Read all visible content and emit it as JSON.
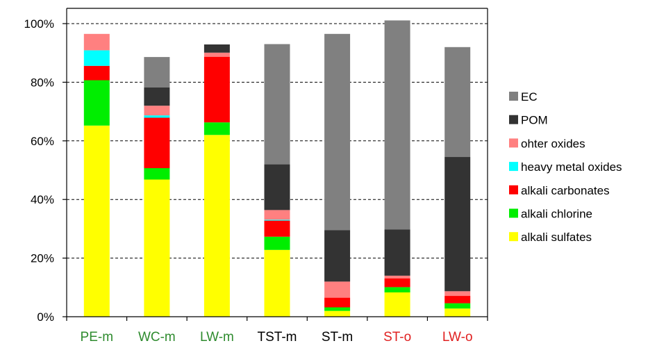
{
  "chart_data": {
    "type": "bar",
    "stacked": true,
    "categories": [
      "PE-m",
      "WC-m",
      "LW-m",
      "TST-m",
      "ST-m",
      "ST-o",
      "LW-o"
    ],
    "category_colors": [
      "#2e8b2e",
      "#2e8b2e",
      "#2e8b2e",
      "#000000",
      "#000000",
      "#e02020",
      "#e02020"
    ],
    "ylim": [
      0,
      100
    ],
    "yticks": [
      0,
      20,
      40,
      60,
      80,
      100
    ],
    "ytick_labels": [
      "0%",
      "20%",
      "40%",
      "60%",
      "80%",
      "100%"
    ],
    "grid": "horizontal dashed",
    "legend_position": "right",
    "series": [
      {
        "name": "alkali sulfates",
        "color": "#ffff00",
        "values": [
          65.2,
          46.8,
          62.0,
          22.8,
          2.0,
          8.3,
          2.8
        ]
      },
      {
        "name": "alkali chlorine",
        "color": "#00ee00",
        "values": [
          15.5,
          3.9,
          4.3,
          4.5,
          1.2,
          1.8,
          1.8
        ]
      },
      {
        "name": "alkali carbonates",
        "color": "#ff0000",
        "values": [
          4.9,
          17.2,
          22.4,
          5.5,
          3.3,
          3.0,
          2.5
        ]
      },
      {
        "name": "heavy metal oxides",
        "color": "#00ffff",
        "values": [
          5.3,
          0.8,
          0.0,
          0.3,
          0.0,
          0.0,
          0.0
        ]
      },
      {
        "name": "ohter oxides",
        "color": "#ff8080",
        "values": [
          5.6,
          3.3,
          1.4,
          3.3,
          5.5,
          0.9,
          1.6
        ]
      },
      {
        "name": "POM",
        "color": "#333333",
        "values": [
          0.0,
          6.2,
          2.8,
          15.6,
          17.5,
          15.8,
          45.8
        ]
      },
      {
        "name": "EC",
        "color": "#808080",
        "values": [
          0.0,
          10.4,
          0.0,
          41.0,
          67.0,
          71.3,
          37.5
        ]
      }
    ]
  }
}
